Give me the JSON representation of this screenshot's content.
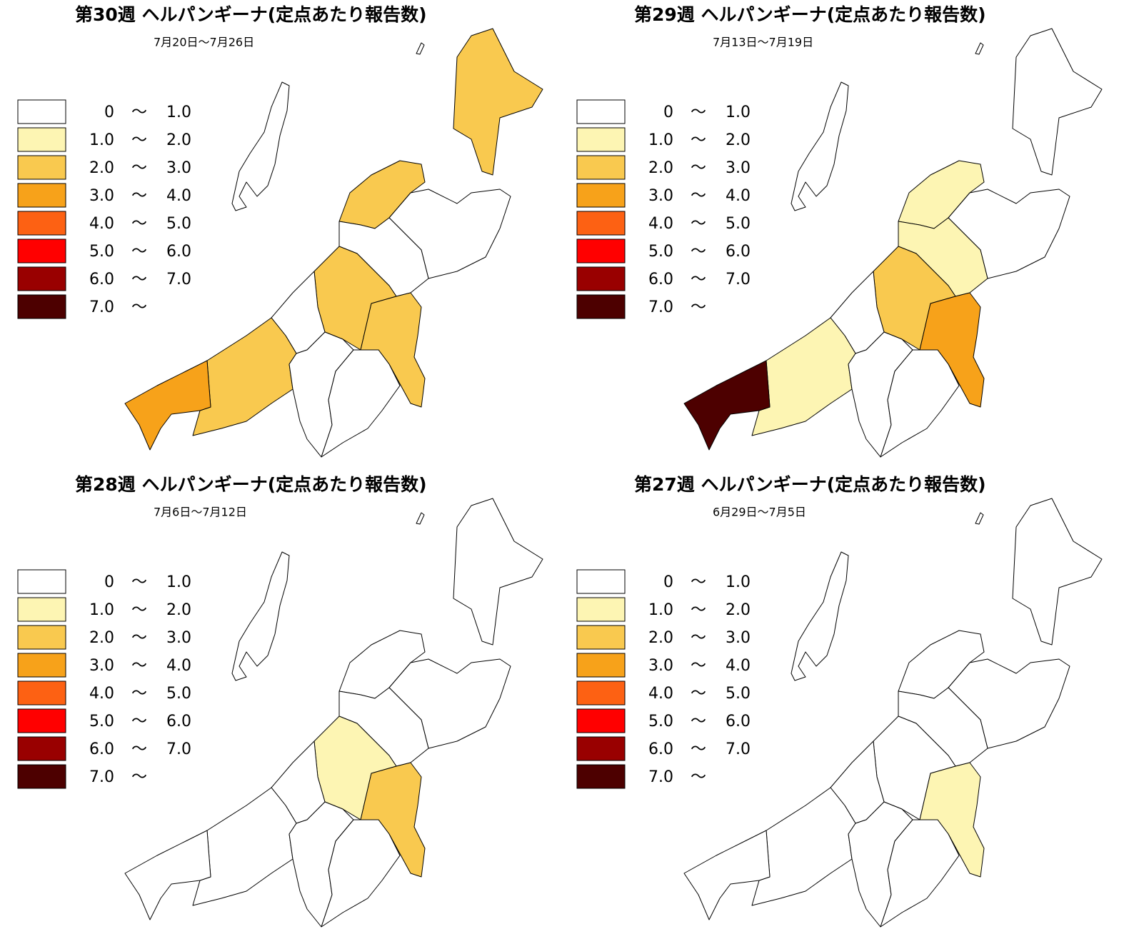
{
  "legend": [
    {
      "from": "0",
      "sep": "〜",
      "to": "1.0",
      "color": "#ffffff"
    },
    {
      "from": "1.0",
      "sep": "〜",
      "to": "2.0",
      "color": "#fdf5b3"
    },
    {
      "from": "2.0",
      "sep": "〜",
      "to": "3.0",
      "color": "#f9c94f"
    },
    {
      "from": "3.0",
      "sep": "〜",
      "to": "4.0",
      "color": "#f7a21a"
    },
    {
      "from": "4.0",
      "sep": "〜",
      "to": "5.0",
      "color": "#fd6113"
    },
    {
      "from": "5.0",
      "sep": "〜",
      "to": "6.0",
      "color": "#ff0000"
    },
    {
      "from": "6.0",
      "sep": "〜",
      "to": "7.0",
      "color": "#990000"
    },
    {
      "from": "7.0",
      "sep": "〜",
      "color": "#4d0000"
    }
  ],
  "panels": [
    {
      "title": "第30週 ヘルパンギーナ(定点あたり報告数)",
      "subtitle": "7月20日〜7月26日",
      "region_colors": [
        "#f9c94f",
        "#f9c94f",
        "#ffffff",
        "#ffffff",
        "#f9c94f",
        "#f9c94f",
        "#ffffff",
        "#f9c94f",
        "#f7a21a",
        "#ffffff",
        "#ffffff"
      ]
    },
    {
      "title": "第29週 ヘルパンギーナ(定点あたり報告数)",
      "subtitle": "7月13日〜7月19日",
      "region_colors": [
        "#ffffff",
        "#fdf5b3",
        "#ffffff",
        "#fdf5b3",
        "#f9c94f",
        "#f7a21a",
        "#ffffff",
        "#fdf5b3",
        "#4d0000",
        "#ffffff",
        "#ffffff"
      ]
    },
    {
      "title": "第28週 ヘルパンギーナ(定点あたり報告数)",
      "subtitle": "7月6日〜7月12日",
      "region_colors": [
        "#ffffff",
        "#ffffff",
        "#ffffff",
        "#ffffff",
        "#fdf5b3",
        "#f9c94f",
        "#ffffff",
        "#ffffff",
        "#ffffff",
        "#ffffff",
        "#ffffff"
      ]
    },
    {
      "title": "第27週 ヘルパンギーナ(定点あたり報告数)",
      "subtitle": "6月29日〜7月5日",
      "region_colors": [
        "#ffffff",
        "#ffffff",
        "#ffffff",
        "#ffffff",
        "#ffffff",
        "#fdf5b3",
        "#ffffff",
        "#ffffff",
        "#ffffff",
        "#ffffff",
        "#ffffff"
      ]
    }
  ]
}
